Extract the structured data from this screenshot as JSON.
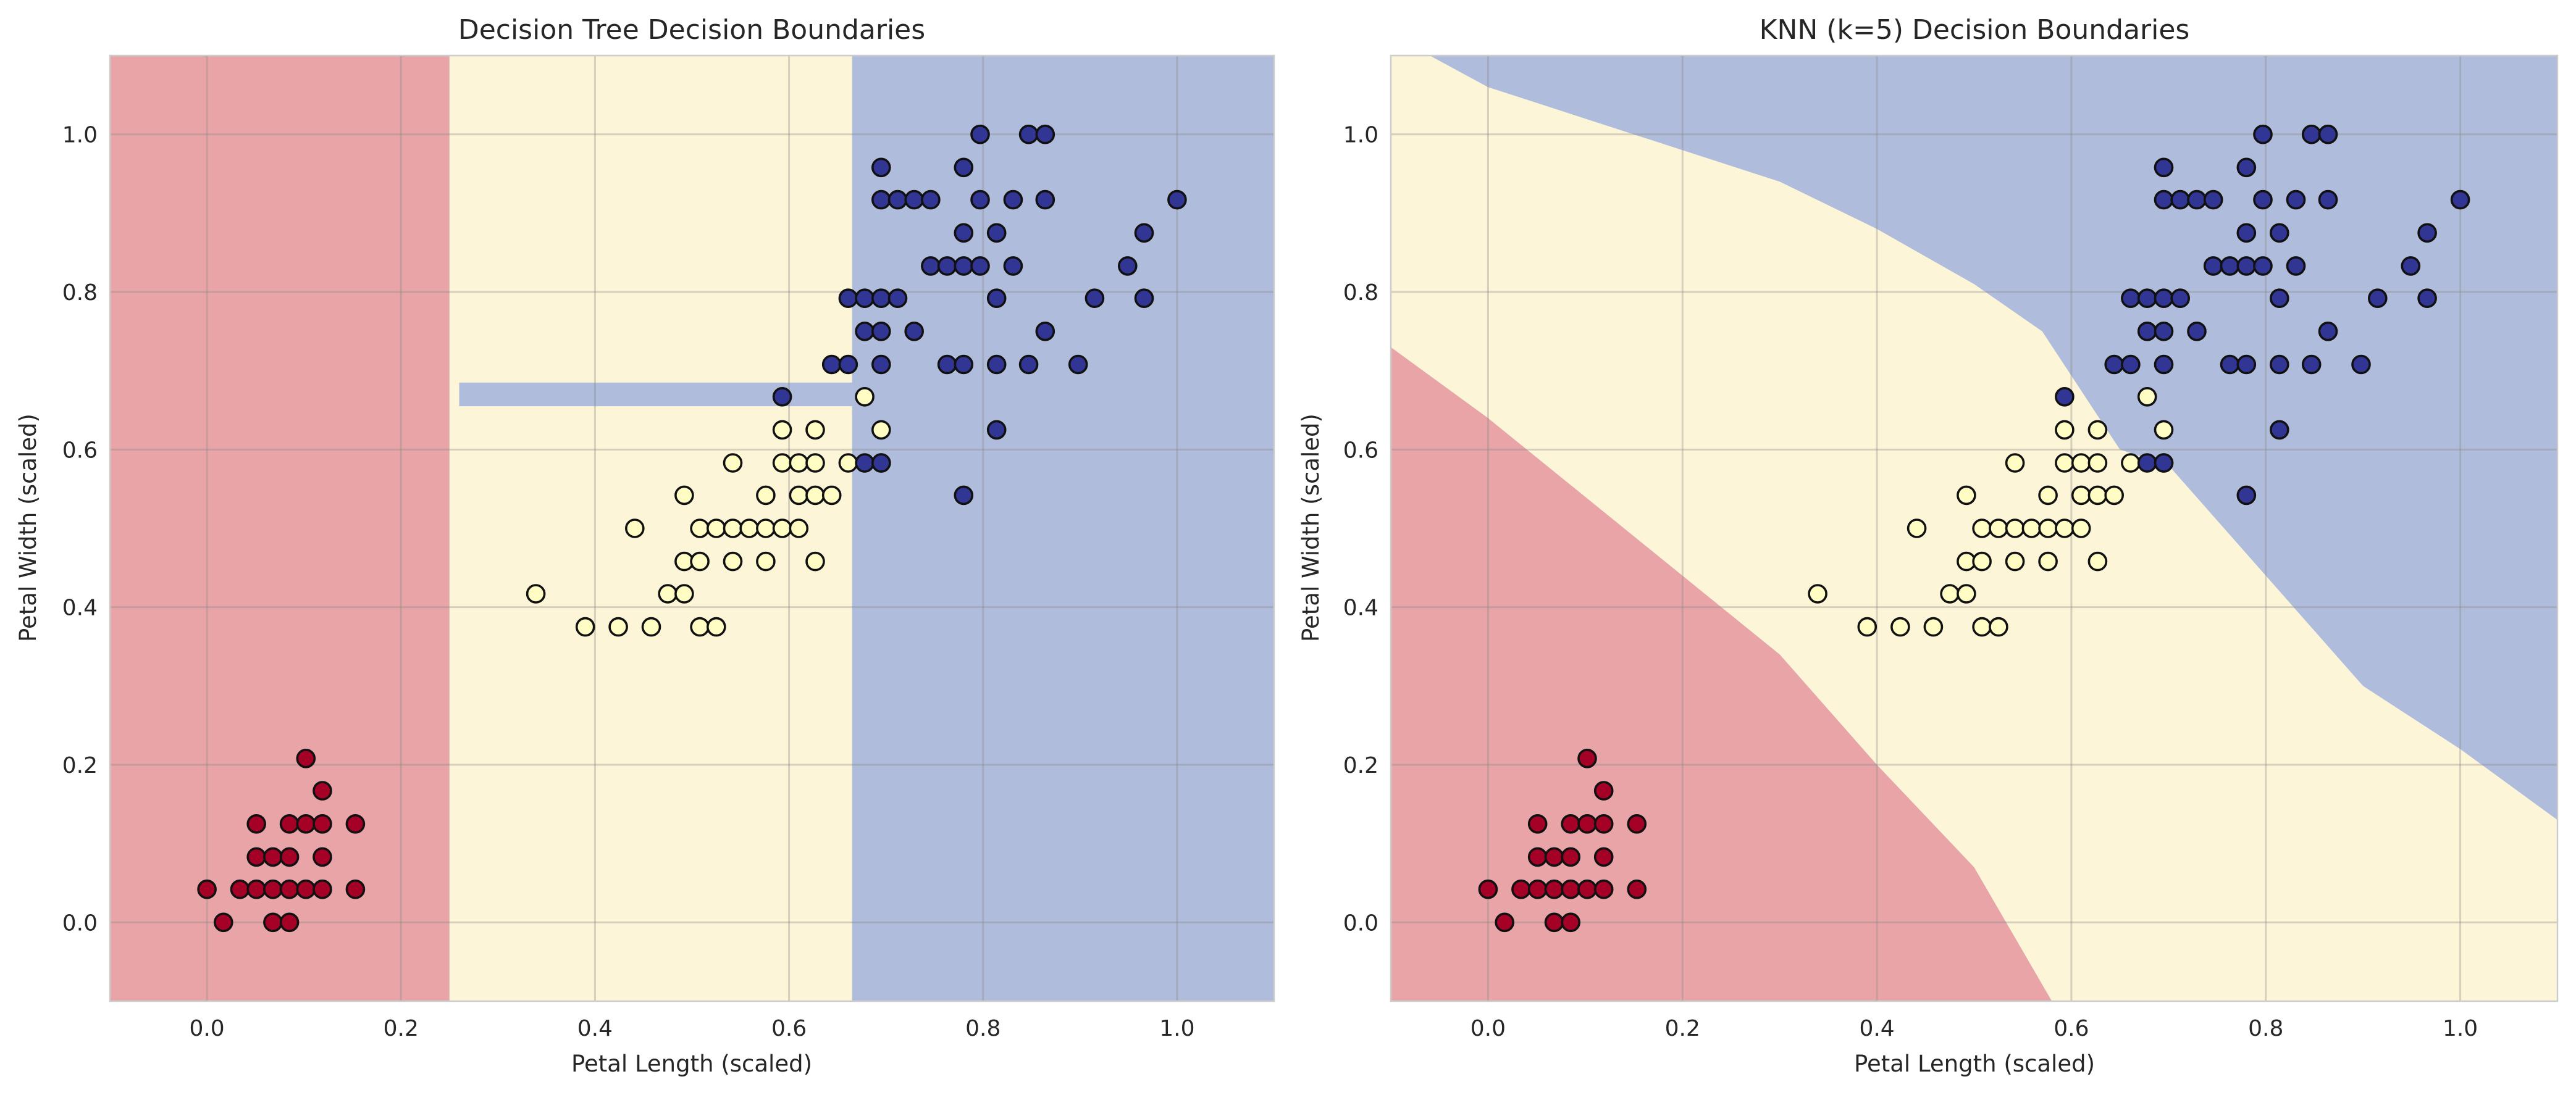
{
  "colors": {
    "setosa_region": "#e8a4a7",
    "versicolor_region": "#fdf5d8",
    "virginica_region": "#b0bcdb",
    "setosa_point": "#a50026",
    "versicolor_point": "#fffdc4",
    "virginica_point": "#313695",
    "boundary_halo": "#bfe0ef"
  },
  "chart_data": [
    {
      "type": "scatter",
      "title": "Decision Tree Decision Boundaries",
      "xlabel": "Petal Length (scaled)",
      "ylabel": "Petal Width (scaled)",
      "xlim": [
        -0.1,
        1.1
      ],
      "ylim": [
        -0.1,
        1.1
      ],
      "xticks": [
        "0.0",
        "0.2",
        "0.4",
        "0.6",
        "0.8",
        "1.0"
      ],
      "yticks": [
        "0.0",
        "0.2",
        "0.4",
        "0.6",
        "0.8",
        "1.0"
      ],
      "grid": true,
      "regions": [
        {
          "class": 0,
          "polygon": [
            [
              -0.1,
              -0.1
            ],
            [
              0.25,
              -0.1
            ],
            [
              0.25,
              1.1
            ],
            [
              -0.1,
              1.1
            ]
          ]
        },
        {
          "class": 1,
          "polygon": [
            [
              0.25,
              -0.1
            ],
            [
              0.665,
              -0.1
            ],
            [
              0.665,
              0.64
            ],
            [
              0.75,
              0.64
            ],
            [
              0.75,
              0.655
            ],
            [
              0.665,
              0.655
            ],
            [
              0.665,
              1.1
            ],
            [
              0.25,
              1.1
            ]
          ]
        },
        {
          "class": 2,
          "polygon": [
            [
              0.665,
              -0.1
            ],
            [
              1.1,
              -0.1
            ],
            [
              1.1,
              1.1
            ],
            [
              0.665,
              1.1
            ]
          ]
        },
        {
          "class": 2,
          "polygon": [
            [
              0.26,
              0.655
            ],
            [
              0.665,
              0.655
            ],
            [
              0.665,
              0.685
            ],
            [
              0.26,
              0.685
            ]
          ]
        }
      ]
    },
    {
      "type": "scatter",
      "title": "KNN (k=5) Decision Boundaries",
      "xlabel": "Petal Length (scaled)",
      "ylabel": "Petal Width (scaled)",
      "xlim": [
        -0.1,
        1.1
      ],
      "ylim": [
        -0.1,
        1.1
      ],
      "xticks": [
        "0.0",
        "0.2",
        "0.4",
        "0.6",
        "0.8",
        "1.0"
      ],
      "yticks": [
        "0.0",
        "0.2",
        "0.4",
        "0.6",
        "0.8",
        "1.0"
      ],
      "grid": true,
      "regions": [
        {
          "class": 0,
          "polygon": [
            [
              -0.1,
              0.73
            ],
            [
              0.0,
              0.64
            ],
            [
              0.1,
              0.54
            ],
            [
              0.2,
              0.44
            ],
            [
              0.3,
              0.34
            ],
            [
              0.4,
              0.2
            ],
            [
              0.5,
              0.07
            ],
            [
              0.58,
              -0.1
            ],
            [
              -0.1,
              -0.1
            ]
          ]
        },
        {
          "class": 1,
          "polygon": [
            [
              -0.1,
              0.73
            ],
            [
              0.0,
              0.64
            ],
            [
              0.1,
              0.54
            ],
            [
              0.2,
              0.44
            ],
            [
              0.3,
              0.34
            ],
            [
              0.4,
              0.2
            ],
            [
              0.5,
              0.07
            ],
            [
              0.58,
              -0.1
            ],
            [
              1.1,
              -0.1
            ],
            [
              1.1,
              0.13
            ],
            [
              1.0,
              0.22
            ],
            [
              0.9,
              0.3
            ],
            [
              0.8,
              0.44
            ],
            [
              0.7,
              0.58
            ],
            [
              0.65,
              0.6
            ],
            [
              0.57,
              0.75
            ],
            [
              0.5,
              0.81
            ],
            [
              0.4,
              0.88
            ],
            [
              0.3,
              0.94
            ],
            [
              0.15,
              1.0
            ],
            [
              0.0,
              1.06
            ],
            [
              -0.06,
              1.1
            ],
            [
              -0.1,
              1.1
            ]
          ]
        },
        {
          "class": 2,
          "polygon": [
            [
              -0.06,
              1.1
            ],
            [
              0.0,
              1.06
            ],
            [
              0.15,
              1.0
            ],
            [
              0.3,
              0.94
            ],
            [
              0.4,
              0.88
            ],
            [
              0.5,
              0.81
            ],
            [
              0.57,
              0.75
            ],
            [
              0.65,
              0.6
            ],
            [
              0.7,
              0.58
            ],
            [
              0.8,
              0.44
            ],
            [
              0.9,
              0.3
            ],
            [
              1.0,
              0.22
            ],
            [
              1.1,
              0.13
            ],
            [
              1.1,
              1.1
            ]
          ]
        }
      ]
    }
  ],
  "points": [
    {
      "x": 0.0,
      "y": 0.042,
      "c": 0
    },
    {
      "x": 0.017,
      "y": 0.0,
      "c": 0
    },
    {
      "x": 0.034,
      "y": 0.042,
      "c": 0
    },
    {
      "x": 0.051,
      "y": 0.042,
      "c": 0
    },
    {
      "x": 0.051,
      "y": 0.083,
      "c": 0
    },
    {
      "x": 0.051,
      "y": 0.125,
      "c": 0
    },
    {
      "x": 0.068,
      "y": 0.0,
      "c": 0
    },
    {
      "x": 0.068,
      "y": 0.042,
      "c": 0
    },
    {
      "x": 0.068,
      "y": 0.083,
      "c": 0
    },
    {
      "x": 0.085,
      "y": 0.0,
      "c": 0
    },
    {
      "x": 0.085,
      "y": 0.042,
      "c": 0
    },
    {
      "x": 0.085,
      "y": 0.083,
      "c": 0
    },
    {
      "x": 0.085,
      "y": 0.125,
      "c": 0
    },
    {
      "x": 0.102,
      "y": 0.042,
      "c": 0
    },
    {
      "x": 0.102,
      "y": 0.125,
      "c": 0
    },
    {
      "x": 0.102,
      "y": 0.208,
      "c": 0
    },
    {
      "x": 0.119,
      "y": 0.042,
      "c": 0
    },
    {
      "x": 0.119,
      "y": 0.083,
      "c": 0
    },
    {
      "x": 0.119,
      "y": 0.125,
      "c": 0
    },
    {
      "x": 0.119,
      "y": 0.167,
      "c": 0
    },
    {
      "x": 0.153,
      "y": 0.042,
      "c": 0
    },
    {
      "x": 0.153,
      "y": 0.125,
      "c": 0
    },
    {
      "x": 0.339,
      "y": 0.417,
      "c": 1
    },
    {
      "x": 0.39,
      "y": 0.375,
      "c": 1
    },
    {
      "x": 0.424,
      "y": 0.375,
      "c": 1
    },
    {
      "x": 0.441,
      "y": 0.5,
      "c": 1
    },
    {
      "x": 0.458,
      "y": 0.375,
      "c": 1
    },
    {
      "x": 0.475,
      "y": 0.417,
      "c": 1
    },
    {
      "x": 0.492,
      "y": 0.417,
      "c": 1
    },
    {
      "x": 0.492,
      "y": 0.458,
      "c": 1
    },
    {
      "x": 0.492,
      "y": 0.542,
      "c": 1
    },
    {
      "x": 0.508,
      "y": 0.375,
      "c": 1
    },
    {
      "x": 0.508,
      "y": 0.458,
      "c": 1
    },
    {
      "x": 0.508,
      "y": 0.5,
      "c": 1
    },
    {
      "x": 0.525,
      "y": 0.375,
      "c": 1
    },
    {
      "x": 0.525,
      "y": 0.5,
      "c": 1
    },
    {
      "x": 0.542,
      "y": 0.458,
      "c": 1
    },
    {
      "x": 0.542,
      "y": 0.5,
      "c": 1
    },
    {
      "x": 0.542,
      "y": 0.583,
      "c": 1
    },
    {
      "x": 0.559,
      "y": 0.5,
      "c": 1
    },
    {
      "x": 0.576,
      "y": 0.458,
      "c": 1
    },
    {
      "x": 0.576,
      "y": 0.5,
      "c": 1
    },
    {
      "x": 0.576,
      "y": 0.542,
      "c": 1
    },
    {
      "x": 0.593,
      "y": 0.5,
      "c": 1
    },
    {
      "x": 0.593,
      "y": 0.583,
      "c": 1
    },
    {
      "x": 0.593,
      "y": 0.625,
      "c": 1
    },
    {
      "x": 0.61,
      "y": 0.5,
      "c": 1
    },
    {
      "x": 0.61,
      "y": 0.542,
      "c": 1
    },
    {
      "x": 0.61,
      "y": 0.583,
      "c": 1
    },
    {
      "x": 0.627,
      "y": 0.458,
      "c": 1
    },
    {
      "x": 0.627,
      "y": 0.542,
      "c": 1
    },
    {
      "x": 0.627,
      "y": 0.583,
      "c": 1
    },
    {
      "x": 0.627,
      "y": 0.625,
      "c": 1
    },
    {
      "x": 0.644,
      "y": 0.542,
      "c": 1
    },
    {
      "x": 0.661,
      "y": 0.583,
      "c": 1
    },
    {
      "x": 0.678,
      "y": 0.667,
      "c": 1
    },
    {
      "x": 0.695,
      "y": 0.583,
      "c": 1
    },
    {
      "x": 0.695,
      "y": 0.625,
      "c": 1
    },
    {
      "x": 0.593,
      "y": 0.667,
      "c": 2
    },
    {
      "x": 0.644,
      "y": 0.708,
      "c": 2
    },
    {
      "x": 0.661,
      "y": 0.708,
      "c": 2
    },
    {
      "x": 0.661,
      "y": 0.792,
      "c": 2
    },
    {
      "x": 0.678,
      "y": 0.583,
      "c": 2
    },
    {
      "x": 0.678,
      "y": 0.75,
      "c": 2
    },
    {
      "x": 0.678,
      "y": 0.792,
      "c": 2
    },
    {
      "x": 0.695,
      "y": 0.583,
      "c": 2
    },
    {
      "x": 0.695,
      "y": 0.708,
      "c": 2
    },
    {
      "x": 0.695,
      "y": 0.75,
      "c": 2
    },
    {
      "x": 0.695,
      "y": 0.792,
      "c": 2
    },
    {
      "x": 0.695,
      "y": 0.917,
      "c": 2
    },
    {
      "x": 0.695,
      "y": 0.958,
      "c": 2
    },
    {
      "x": 0.712,
      "y": 0.792,
      "c": 2
    },
    {
      "x": 0.712,
      "y": 0.917,
      "c": 2
    },
    {
      "x": 0.729,
      "y": 0.75,
      "c": 2
    },
    {
      "x": 0.729,
      "y": 0.917,
      "c": 2
    },
    {
      "x": 0.746,
      "y": 0.833,
      "c": 2
    },
    {
      "x": 0.746,
      "y": 0.917,
      "c": 2
    },
    {
      "x": 0.763,
      "y": 0.708,
      "c": 2
    },
    {
      "x": 0.763,
      "y": 0.833,
      "c": 2
    },
    {
      "x": 0.78,
      "y": 0.542,
      "c": 2
    },
    {
      "x": 0.78,
      "y": 0.708,
      "c": 2
    },
    {
      "x": 0.78,
      "y": 0.833,
      "c": 2
    },
    {
      "x": 0.78,
      "y": 0.875,
      "c": 2
    },
    {
      "x": 0.78,
      "y": 0.958,
      "c": 2
    },
    {
      "x": 0.797,
      "y": 0.833,
      "c": 2
    },
    {
      "x": 0.797,
      "y": 0.917,
      "c": 2
    },
    {
      "x": 0.797,
      "y": 1.0,
      "c": 2
    },
    {
      "x": 0.814,
      "y": 0.625,
      "c": 2
    },
    {
      "x": 0.814,
      "y": 0.708,
      "c": 2
    },
    {
      "x": 0.814,
      "y": 0.792,
      "c": 2
    },
    {
      "x": 0.814,
      "y": 0.875,
      "c": 2
    },
    {
      "x": 0.831,
      "y": 0.833,
      "c": 2
    },
    {
      "x": 0.831,
      "y": 0.917,
      "c": 2
    },
    {
      "x": 0.847,
      "y": 0.708,
      "c": 2
    },
    {
      "x": 0.847,
      "y": 1.0,
      "c": 2
    },
    {
      "x": 0.864,
      "y": 0.75,
      "c": 2
    },
    {
      "x": 0.864,
      "y": 0.917,
      "c": 2
    },
    {
      "x": 0.864,
      "y": 1.0,
      "c": 2
    },
    {
      "x": 0.898,
      "y": 0.708,
      "c": 2
    },
    {
      "x": 0.915,
      "y": 0.792,
      "c": 2
    },
    {
      "x": 0.949,
      "y": 0.833,
      "c": 2
    },
    {
      "x": 0.966,
      "y": 0.792,
      "c": 2
    },
    {
      "x": 0.966,
      "y": 0.875,
      "c": 2
    },
    {
      "x": 1.0,
      "y": 0.917,
      "c": 2
    }
  ]
}
